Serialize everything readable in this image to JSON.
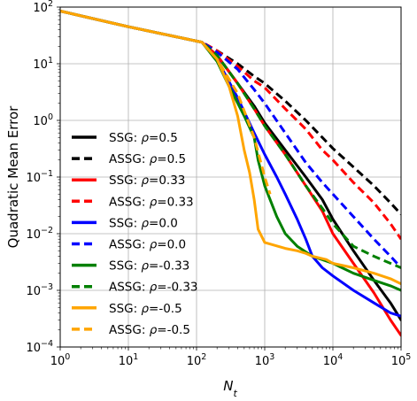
{
  "chart_data": {
    "type": "line",
    "title": "",
    "xlabel": "N_t",
    "ylabel": "Quadratic Mean Error",
    "xscale": "log",
    "yscale": "log",
    "xlim": [
      1,
      100000
    ],
    "ylim": [
      0.0001,
      100
    ],
    "grid": true,
    "legend_position": "center-left",
    "x_ticks": [
      {
        "value": 1,
        "base": "10",
        "exp": "0"
      },
      {
        "value": 10,
        "base": "10",
        "exp": "1"
      },
      {
        "value": 100,
        "base": "10",
        "exp": "2"
      },
      {
        "value": 1000,
        "base": "10",
        "exp": "3"
      },
      {
        "value": 10000,
        "base": "10",
        "exp": "4"
      },
      {
        "value": 100000,
        "base": "10",
        "exp": "5"
      }
    ],
    "y_ticks": [
      {
        "value": 0.0001,
        "base": "10",
        "exp": "−4"
      },
      {
        "value": 0.001,
        "base": "10",
        "exp": "−3"
      },
      {
        "value": 0.01,
        "base": "10",
        "exp": "−2"
      },
      {
        "value": 0.1,
        "base": "10",
        "exp": "−1"
      },
      {
        "value": 1,
        "base": "10",
        "exp": "0"
      },
      {
        "value": 10,
        "base": "10",
        "exp": "1"
      },
      {
        "value": 100,
        "base": "10",
        "exp": "2"
      }
    ],
    "series": [
      {
        "name": "SSG: ρ=0.5",
        "prefix": "SSG: ",
        "suffix": "=0.5",
        "color": "#000000",
        "dash": "solid",
        "x": [
          1,
          10,
          120,
          200,
          400,
          700,
          1000,
          2000,
          4000,
          7000,
          10000,
          20000,
          40000,
          70000,
          100000
        ],
        "y": [
          85,
          45,
          24,
          14,
          4.5,
          1.8,
          0.9,
          0.3,
          0.1,
          0.04,
          0.018,
          0.005,
          0.0015,
          0.0006,
          0.0003
        ]
      },
      {
        "name": "ASSG: ρ=0.5",
        "prefix": "ASSG: ",
        "suffix": "=0.5",
        "color": "#000000",
        "dash": "dashed",
        "x": [
          1,
          10,
          120,
          200,
          400,
          700,
          1000,
          2000,
          4000,
          7000,
          10000,
          20000,
          40000,
          70000,
          100000
        ],
        "y": [
          85,
          45,
          24,
          17,
          10,
          6,
          4.5,
          2.2,
          1,
          0.5,
          0.32,
          0.15,
          0.07,
          0.035,
          0.022
        ]
      },
      {
        "name": "SSG: ρ=0.33",
        "prefix": "SSG: ",
        "suffix": "=0.33",
        "color": "#ff0000",
        "dash": "solid",
        "x": [
          1,
          10,
          120,
          200,
          400,
          700,
          1000,
          2000,
          4000,
          7000,
          10000,
          20000,
          40000,
          70000,
          100000
        ],
        "y": [
          85,
          45,
          24,
          14,
          4.5,
          1.6,
          0.8,
          0.25,
          0.07,
          0.025,
          0.01,
          0.003,
          0.0009,
          0.0003,
          0.00016
        ]
      },
      {
        "name": "ASSG: ρ=0.33",
        "prefix": "ASSG: ",
        "suffix": "=0.33",
        "color": "#ff0000",
        "dash": "dashed",
        "x": [
          1,
          10,
          120,
          200,
          400,
          700,
          1000,
          2000,
          4000,
          7000,
          10000,
          20000,
          40000,
          70000,
          100000
        ],
        "y": [
          85,
          45,
          24,
          17,
          9,
          5,
          3.8,
          1.6,
          0.7,
          0.3,
          0.2,
          0.08,
          0.035,
          0.015,
          0.008
        ]
      },
      {
        "name": "SSG: ρ=0.0",
        "prefix": "SSG: ",
        "suffix": "=0.0",
        "color": "#0000ff",
        "dash": "solid",
        "x": [
          1,
          10,
          120,
          200,
          400,
          700,
          1000,
          1500,
          2000,
          3000,
          4000,
          5000,
          7000,
          10000,
          20000,
          40000,
          70000,
          100000
        ],
        "y": [
          85,
          45,
          24,
          12,
          2.5,
          0.6,
          0.25,
          0.1,
          0.05,
          0.018,
          0.008,
          0.004,
          0.0025,
          0.0018,
          0.001,
          0.0006,
          0.0004,
          0.00035
        ]
      },
      {
        "name": "ASSG: ρ=0.0",
        "prefix": "ASSG: ",
        "suffix": "=0.0",
        "color": "#0000ff",
        "dash": "dashed",
        "x": [
          1,
          10,
          120,
          200,
          400,
          700,
          1000,
          2000,
          4000,
          7000,
          10000,
          20000,
          40000,
          70000,
          100000
        ],
        "y": [
          85,
          45,
          24,
          16,
          8,
          3.5,
          2,
          0.6,
          0.18,
          0.08,
          0.05,
          0.02,
          0.008,
          0.004,
          0.0025
        ]
      },
      {
        "name": "SSG: ρ=-0.33",
        "prefix": "SSG: ",
        "suffix": "=-0.33",
        "color": "#008000",
        "dash": "solid",
        "x": [
          1,
          10,
          120,
          200,
          300,
          500,
          700,
          800,
          1000,
          1500,
          2000,
          3000,
          5000,
          10000,
          20000,
          40000,
          70000,
          100000
        ],
        "y": [
          85,
          45,
          24,
          11,
          4,
          1.2,
          0.5,
          0.2,
          0.07,
          0.02,
          0.01,
          0.006,
          0.004,
          0.003,
          0.002,
          0.0015,
          0.0012,
          0.001
        ]
      },
      {
        "name": "ASSG: ρ=-0.33",
        "prefix": "ASSG: ",
        "suffix": "=-0.33",
        "color": "#008000",
        "dash": "dashed",
        "x": [
          1,
          10,
          120,
          200,
          400,
          700,
          1000,
          2000,
          4000,
          7000,
          10000,
          20000,
          40000,
          70000,
          100000
        ],
        "y": [
          85,
          45,
          24,
          14,
          4.5,
          1.6,
          0.8,
          0.25,
          0.07,
          0.028,
          0.015,
          0.006,
          0.004,
          0.003,
          0.0025
        ]
      },
      {
        "name": "SSG: ρ=-0.5",
        "prefix": "SSG: ",
        "suffix": "=-0.5",
        "color": "#ffa500",
        "dash": "solid",
        "x": [
          1,
          10,
          120,
          200,
          300,
          400,
          500,
          600,
          700,
          800,
          1000,
          2000,
          3000,
          4000,
          5000,
          8000,
          10000,
          20000,
          40000,
          70000,
          100000
        ],
        "y": [
          85,
          45,
          24,
          12,
          4,
          1.2,
          0.3,
          0.12,
          0.04,
          0.012,
          0.007,
          0.0055,
          0.005,
          0.0045,
          0.004,
          0.0035,
          0.003,
          0.0025,
          0.002,
          0.0016,
          0.0013
        ]
      },
      {
        "name": "ASSG: ρ=-0.5",
        "prefix": "ASSG: ",
        "suffix": "=-0.5",
        "color": "#ffa500",
        "dash": "dashed",
        "x": [
          1,
          10,
          120,
          200,
          400,
          700,
          1000,
          1200
        ],
        "y": [
          85,
          45,
          24,
          12,
          3,
          0.5,
          0.1,
          0.05
        ]
      }
    ]
  }
}
